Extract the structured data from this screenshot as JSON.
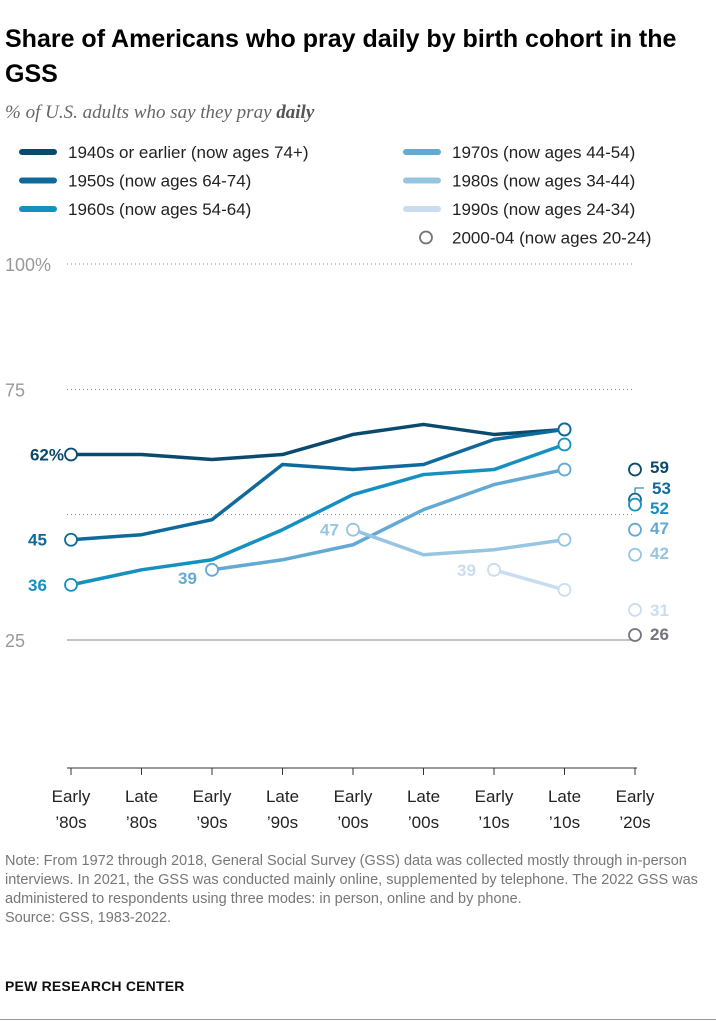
{
  "title": "Share of Americans who pray daily by birth cohort in the GSS",
  "subtitle_prefix": "% of U.S. adults who say they pray ",
  "subtitle_emphasis": "daily",
  "note": "Note: From 1972 through 2018, General Social Survey (GSS) data was collected mostly through in-person interviews. In 2021, the GSS was conducted mainly online, supplemented by telephone. The 2022 GSS was administered to respondents using three modes: in person, online and by phone.",
  "source": "Source: GSS, 1983-2022.",
  "brand": "PEW RESEARCH CENTER",
  "chart_data": {
    "type": "line",
    "title": "Share of Americans who pray daily by birth cohort in the GSS",
    "ylabel": "% of U.S. adults who say they pray daily",
    "ylim": [
      0,
      100
    ],
    "yticks": [
      {
        "value": 100,
        "label": "100%",
        "dotted": true
      },
      {
        "value": 75,
        "label": "75",
        "dotted": true
      },
      {
        "value": 50,
        "label": "",
        "dotted": true
      },
      {
        "value": 25,
        "label": "25",
        "dotted": false
      }
    ],
    "categories": [
      {
        "top": "Early",
        "bottom": "’80s"
      },
      {
        "top": "Late",
        "bottom": "’80s"
      },
      {
        "top": "Early",
        "bottom": "’90s"
      },
      {
        "top": "Late",
        "bottom": "’90s"
      },
      {
        "top": "Early",
        "bottom": "’00s"
      },
      {
        "top": "Late",
        "bottom": "’00s"
      },
      {
        "top": "Early",
        "bottom": "’10s"
      },
      {
        "top": "Late",
        "bottom": "’10s"
      },
      {
        "top": "Early",
        "bottom": "’20s"
      }
    ],
    "series": [
      {
        "name": "1940s or earlier (now ages 74+)",
        "color": "#0b4a6f",
        "values": [
          62,
          62,
          61,
          62,
          66,
          68,
          66,
          67,
          null
        ],
        "start_label": "62%",
        "end_label": "59",
        "end_value": 59
      },
      {
        "name": "1950s (now ages 64-74)",
        "color": "#0f6a9c",
        "values": [
          45,
          46,
          49,
          60,
          59,
          60,
          65,
          67,
          null
        ],
        "start_label": "45",
        "end_label": "53",
        "end_value": 53
      },
      {
        "name": "1960s (now ages 54-64)",
        "color": "#1591bf",
        "values": [
          36,
          39,
          41,
          47,
          54,
          58,
          59,
          64,
          null
        ],
        "start_label": "36",
        "end_label": "52",
        "end_value": 52
      },
      {
        "name": "1970s (now ages 44-54)",
        "color": "#62aad4",
        "values": [
          null,
          null,
          39,
          41,
          44,
          51,
          56,
          59,
          null
        ],
        "start_label": "39",
        "end_label": "47",
        "end_value": 47
      },
      {
        "name": "1980s (now ages 34-44)",
        "color": "#96c5e2",
        "values": [
          null,
          null,
          null,
          null,
          47,
          42,
          43,
          45,
          null
        ],
        "start_label": "47",
        "end_label": "42",
        "end_value": 42
      },
      {
        "name": "1990s (now ages 24-34)",
        "color": "#c8def0",
        "values": [
          null,
          null,
          null,
          null,
          null,
          null,
          39,
          35,
          null
        ],
        "start_label": "39",
        "end_label": "31",
        "end_value": 31
      },
      {
        "name": "2000-04 (now ages 20-24)",
        "color": "#74747c",
        "values": [
          null,
          null,
          null,
          null,
          null,
          null,
          null,
          null,
          null
        ],
        "start_label": "",
        "end_label": "26",
        "end_value": 26
      }
    ]
  }
}
